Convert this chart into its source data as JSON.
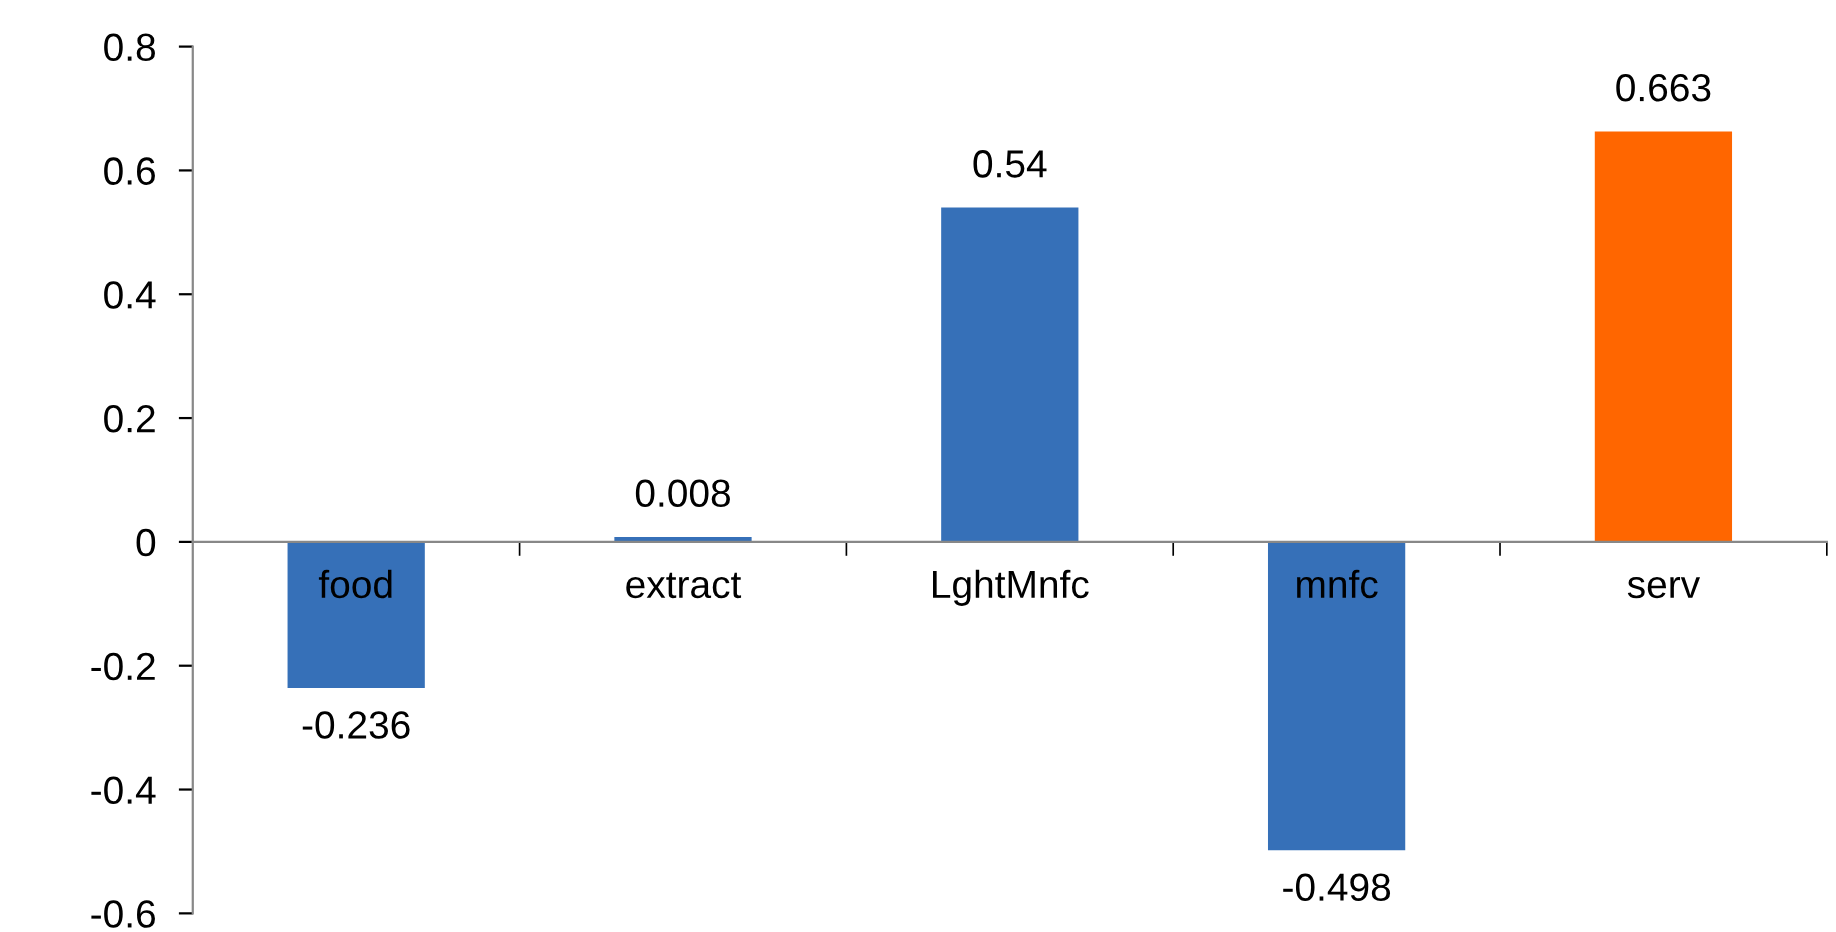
{
  "chart_data": {
    "type": "bar",
    "categories": [
      "food",
      "extract",
      "LghtMnfc",
      "mnfc",
      "serv"
    ],
    "values": [
      -0.236,
      0.008,
      0.54,
      -0.498,
      0.663
    ],
    "colors": [
      "#3670b8",
      "#3670b8",
      "#3670b8",
      "#3670b8",
      "#ff6600"
    ],
    "ylim": [
      -0.6,
      0.8
    ],
    "yticks": [
      -0.6,
      -0.4,
      -0.2,
      0,
      0.2,
      0.4,
      0.6,
      0.8
    ],
    "data_labels": true,
    "grid": false,
    "legend": false
  }
}
